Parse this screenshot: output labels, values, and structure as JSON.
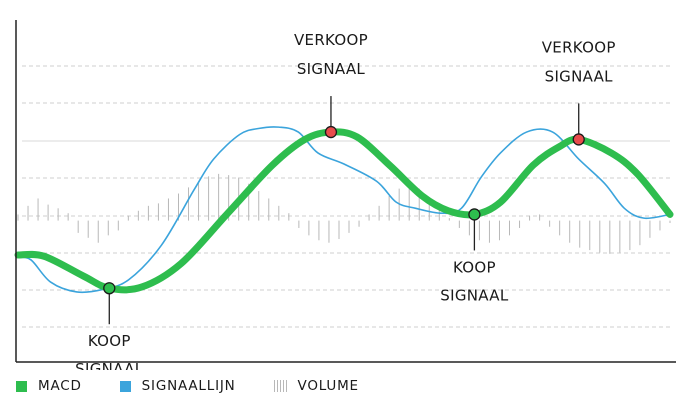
{
  "chart_data": {
    "type": "line",
    "title": "",
    "xlabel": "",
    "ylabel": "",
    "grid": true,
    "legend_position": "bottom-left",
    "colors": {
      "macd": "#2ebd4e",
      "signal": "#3ba4dc",
      "volume": "#b8b8b8",
      "buy_marker": "#2ebd4e",
      "sell_marker": "#e84c4c"
    },
    "series": [
      {
        "name": "MACD",
        "key": "macd",
        "values": [
          [
            0,
            -0.28
          ],
          [
            4,
            -0.29
          ],
          [
            10,
            -0.45
          ],
          [
            14,
            -0.55
          ],
          [
            19,
            -0.54
          ],
          [
            25,
            -0.35
          ],
          [
            32,
            0.05
          ],
          [
            39,
            0.45
          ],
          [
            44,
            0.66
          ],
          [
            48,
            0.72
          ],
          [
            52,
            0.68
          ],
          [
            57,
            0.45
          ],
          [
            62,
            0.2
          ],
          [
            66,
            0.08
          ],
          [
            70,
            0.05
          ],
          [
            74,
            0.15
          ],
          [
            79,
            0.45
          ],
          [
            83,
            0.6
          ],
          [
            86,
            0.66
          ],
          [
            91,
            0.55
          ],
          [
            95,
            0.38
          ],
          [
            100,
            0.05
          ]
        ]
      },
      {
        "name": "SIGNAALLIJN",
        "key": "signal",
        "values": [
          [
            0,
            -0.3
          ],
          [
            2,
            -0.32
          ],
          [
            5,
            -0.5
          ],
          [
            9,
            -0.58
          ],
          [
            13,
            -0.56
          ],
          [
            17,
            -0.48
          ],
          [
            22,
            -0.2
          ],
          [
            27,
            0.25
          ],
          [
            30,
            0.5
          ],
          [
            34,
            0.7
          ],
          [
            37,
            0.75
          ],
          [
            40,
            0.76
          ],
          [
            43,
            0.72
          ],
          [
            46,
            0.55
          ],
          [
            50,
            0.46
          ],
          [
            55,
            0.32
          ],
          [
            58,
            0.15
          ],
          [
            61,
            0.1
          ],
          [
            65,
            0.06
          ],
          [
            68,
            0.1
          ],
          [
            71,
            0.35
          ],
          [
            74,
            0.55
          ],
          [
            78,
            0.72
          ],
          [
            82,
            0.72
          ],
          [
            86,
            0.5
          ],
          [
            90,
            0.3
          ],
          [
            93,
            0.1
          ],
          [
            96,
            0.02
          ],
          [
            100,
            0.05
          ]
        ]
      },
      {
        "name": "VOLUME",
        "key": "volume",
        "type": "bar",
        "values": [
          0.05,
          0.12,
          0.18,
          0.13,
          0.1,
          0.06,
          -0.1,
          -0.14,
          -0.18,
          -0.12,
          -0.08,
          0.04,
          0.08,
          0.12,
          0.14,
          0.18,
          0.22,
          0.27,
          0.32,
          0.36,
          0.38,
          0.37,
          0.35,
          0.3,
          0.24,
          0.18,
          0.12,
          0.06,
          -0.06,
          -0.12,
          -0.16,
          -0.18,
          -0.15,
          -0.1,
          -0.05,
          0.05,
          0.12,
          0.2,
          0.26,
          0.3,
          0.26,
          0.18,
          0.1,
          0.02,
          -0.06,
          -0.12,
          -0.16,
          -0.18,
          -0.16,
          -0.12,
          -0.06,
          0.04,
          0.05,
          -0.05,
          -0.12,
          -0.18,
          -0.22,
          -0.24,
          -0.26,
          -0.27,
          -0.26,
          -0.24,
          -0.2,
          -0.14,
          -0.08,
          -0.02
        ]
      }
    ],
    "annotations": [
      {
        "label": [
          "KOOP",
          "SIGNAAL"
        ],
        "type": "buy",
        "x": 14,
        "y": -0.55,
        "placement": "below"
      },
      {
        "label": [
          "VERKOOP",
          "SIGNAAL"
        ],
        "type": "sell",
        "x": 48,
        "y": 0.72,
        "placement": "above"
      },
      {
        "label": [
          "KOOP",
          "SIGNAAL"
        ],
        "type": "buy",
        "x": 70,
        "y": 0.05,
        "placement": "below"
      },
      {
        "label": [
          "VERKOOP",
          "SIGNAAL"
        ],
        "type": "sell",
        "x": 86,
        "y": 0.66,
        "placement": "above"
      }
    ],
    "xlim": [
      0,
      100
    ],
    "ylim": [
      -1.15,
      1.55
    ]
  },
  "legend": [
    {
      "key": "macd",
      "label": "MACD"
    },
    {
      "key": "signal",
      "label": "SIGNAALLIJN"
    },
    {
      "key": "volume",
      "label": "VOLUME"
    }
  ]
}
